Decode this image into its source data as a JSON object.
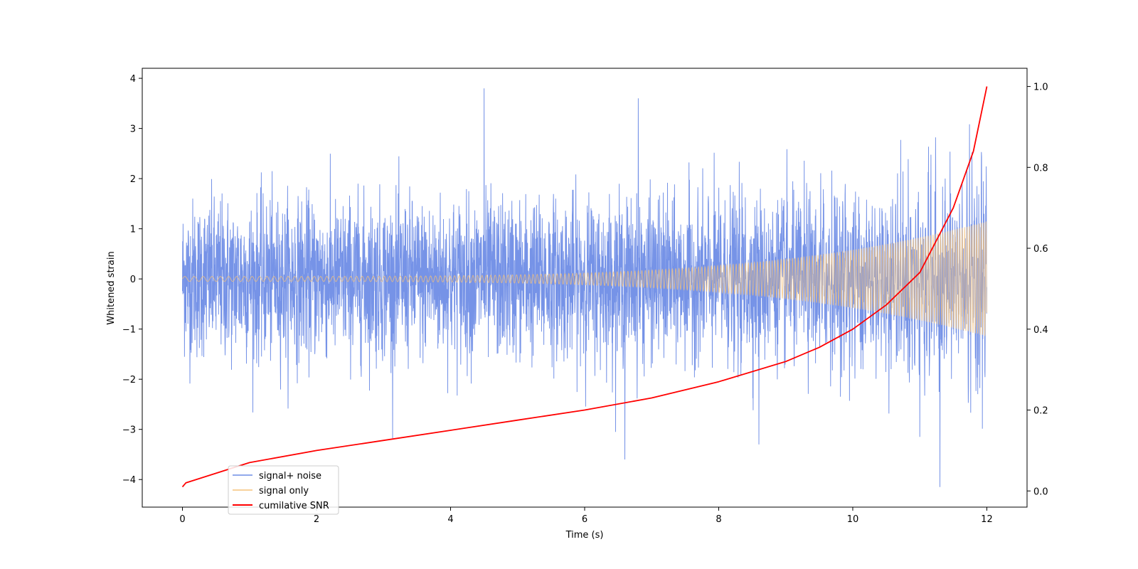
{
  "chart_data": {
    "type": "line",
    "title": "",
    "xlabel": "Time (s)",
    "ylabel": "Whitened strain",
    "y2label": "",
    "xlim": [
      -0.6,
      12.6
    ],
    "ylim": [
      -4.55,
      4.2
    ],
    "y2lim": [
      -0.04,
      1.045
    ],
    "xticks": [
      0,
      2,
      4,
      6,
      8,
      10,
      12
    ],
    "yticks": [
      -4,
      -3,
      -2,
      -1,
      0,
      1,
      2,
      3,
      4
    ],
    "y2ticks": [
      0.0,
      0.2,
      0.4,
      0.6,
      0.8,
      1.0
    ],
    "xtick_labels": [
      "0",
      "2",
      "4",
      "6",
      "8",
      "10",
      "12"
    ],
    "ytick_labels": [
      "−4",
      "−3",
      "−2",
      "−1",
      "0",
      "1",
      "2",
      "3",
      "4"
    ],
    "y2tick_labels": [
      "0.0",
      "0.2",
      "0.4",
      "0.6",
      "0.8",
      "1.0"
    ],
    "grid": false,
    "legend_position": "lower-left",
    "series": [
      {
        "name": "signal+ noise",
        "axis": "left",
        "color": "#6f8de6",
        "kind": "noisy-band",
        "x_range": [
          0,
          12
        ],
        "typical_range": [
          -1.8,
          1.9
        ],
        "extremes": [
          {
            "x": 4.5,
            "y": 3.8
          },
          {
            "x": 6.8,
            "y": 3.6
          },
          {
            "x": 11.3,
            "y": -4.15
          },
          {
            "x": 6.6,
            "y": -3.6
          },
          {
            "x": 8.6,
            "y": -3.3
          },
          {
            "x": 11.0,
            "y": -3.15
          }
        ]
      },
      {
        "name": "signal only",
        "axis": "left",
        "color": "#f5c27a",
        "kind": "chirp",
        "x_range": [
          0,
          12
        ],
        "amplitude_start": 0.05,
        "amplitude_end": 1.15
      },
      {
        "name": "cumilative SNR",
        "axis": "right",
        "color": "#ff0000",
        "kind": "curve",
        "x": [
          0,
          0.05,
          1,
          2,
          3,
          4,
          5,
          6,
          7,
          8,
          9,
          9.5,
          10,
          10.5,
          11,
          11.5,
          11.8,
          12
        ],
        "y": [
          0.01,
          0.02,
          0.07,
          0.1,
          0.125,
          0.15,
          0.175,
          0.2,
          0.23,
          0.27,
          0.32,
          0.355,
          0.4,
          0.46,
          0.54,
          0.7,
          0.84,
          1.0
        ]
      }
    ]
  }
}
